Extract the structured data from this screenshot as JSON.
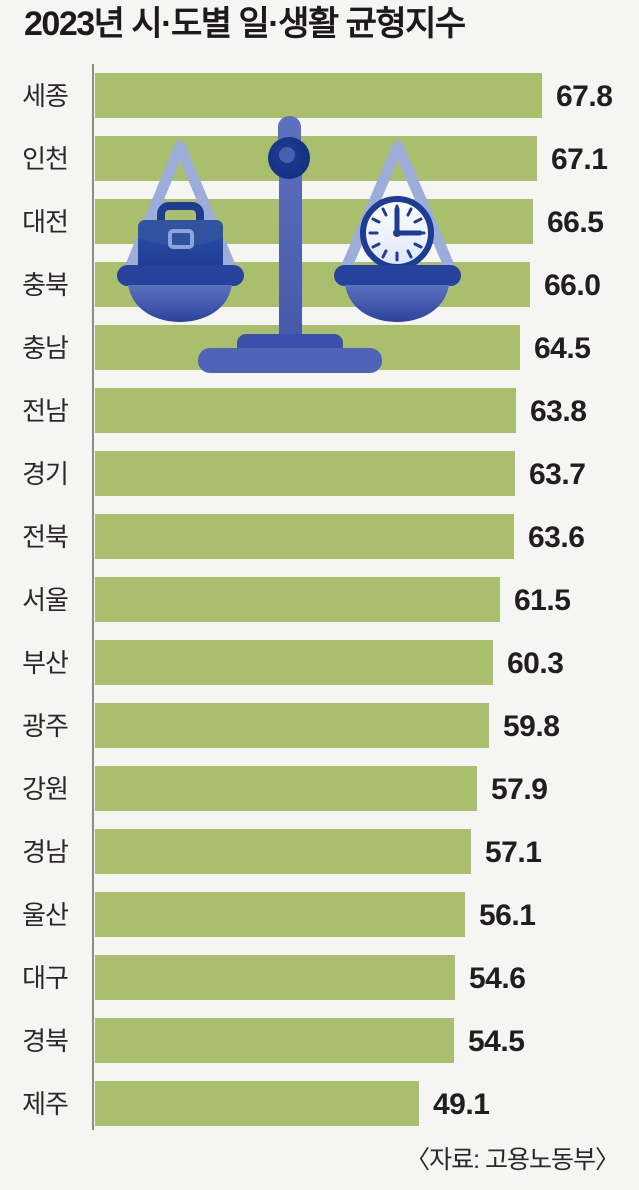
{
  "title": "2023년 시·도별 일·생활 균형지수",
  "source": "〈자료: 고용노동부〉",
  "colors": {
    "background": "#f5f5f3",
    "bar": "#a9bf6d",
    "axis_line": "#8c8c8c",
    "title_text": "#1e191a",
    "label_text": "#2c2829",
    "value_text": "#221d1e",
    "illustration_navy": "#1d3c94",
    "illustration_mid_blue": "#4c5fb2",
    "illustration_light_blue": "#9cadd9",
    "clock_face": "#f2f6fd"
  },
  "illustration": {
    "name": "balance-scale",
    "left_pan_item": "briefcase",
    "right_pan_item": "clock"
  },
  "chart_data": {
    "type": "bar",
    "orientation": "horizontal",
    "title": "2023년 시·도별 일·생활 균형지수",
    "categories": [
      "세종",
      "인천",
      "대전",
      "충북",
      "충남",
      "전남",
      "경기",
      "전북",
      "서울",
      "부산",
      "광주",
      "강원",
      "경남",
      "울산",
      "대구",
      "경북",
      "제주"
    ],
    "values": [
      67.8,
      67.1,
      66.5,
      66.0,
      64.5,
      63.8,
      63.7,
      63.6,
      61.5,
      60.3,
      59.8,
      57.9,
      57.1,
      56.1,
      54.6,
      54.5,
      49.1
    ],
    "value_labels": [
      "67.8",
      "67.1",
      "66.5",
      "66.0",
      "64.5",
      "63.8",
      "63.7",
      "63.6",
      "61.5",
      "60.3",
      "59.8",
      "57.9",
      "57.1",
      "56.1",
      "54.6",
      "54.5",
      "49.1"
    ],
    "xlim": [
      0,
      82.5
    ],
    "xlabel": "",
    "ylabel": "",
    "grid": false,
    "legend": "none",
    "bar_value_labels_shown": true,
    "source": "〈자료: 고용노동부〉"
  }
}
